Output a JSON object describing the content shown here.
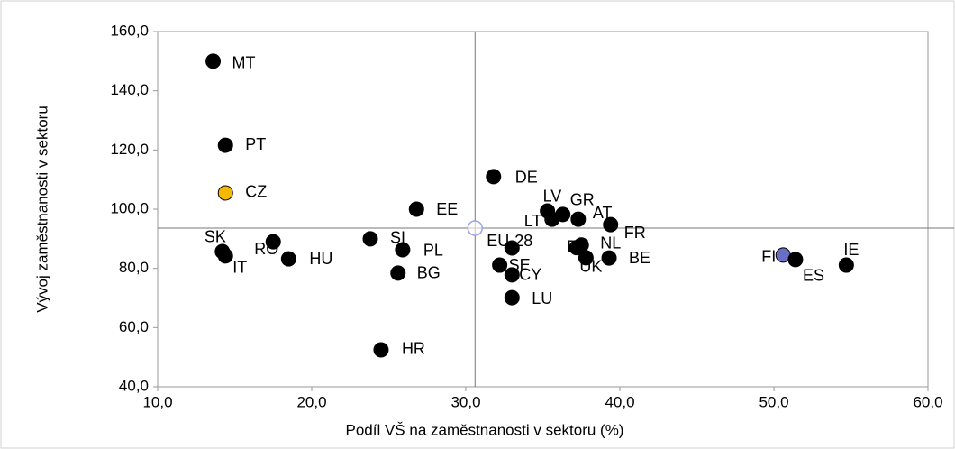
{
  "chart_data": {
    "type": "scatter",
    "x_label": "Podíl VŠ na zaměstnanosti  v sektoru (%)",
    "y_label": "Vývoj zaměstnanosti v sektoru",
    "labels": [
      "MT",
      "PT",
      "CZ",
      "SK",
      "IT",
      "RO",
      "HU",
      "SI",
      "PL",
      "BG",
      "HR",
      "EE",
      "DE",
      "LV",
      "LT",
      "GR",
      "AT",
      "FR",
      "EU-28",
      "DK",
      "NL",
      "UK",
      "BE",
      "SE",
      "CY",
      "LU",
      "FI",
      "ES",
      "IE"
    ],
    "x": [
      13.6,
      14.4,
      14.4,
      14.2,
      14.4,
      17.5,
      18.5,
      23.8,
      25.9,
      25.6,
      24.5,
      26.8,
      31.8,
      35.3,
      35.6,
      36.3,
      37.3,
      39.4,
      33.0,
      37.2,
      37.5,
      37.8,
      39.3,
      32.2,
      33.0,
      33.0,
      50.6,
      51.4,
      54.7
    ],
    "values": [
      150,
      121.6,
      105.5,
      85.7,
      84.2,
      89.0,
      83.2,
      90.0,
      86.3,
      78.4,
      52.5,
      100.0,
      111.0,
      99.4,
      96.6,
      98.2,
      96.6,
      94.8,
      86.9,
      87.0,
      87.9,
      83.6,
      83.5,
      81.1,
      77.8,
      70.1,
      84.5,
      83.0,
      81.1
    ],
    "colors": [
      "#000000",
      "#000000",
      "#f5b800",
      "#000000",
      "#000000",
      "#000000",
      "#000000",
      "#000000",
      "#000000",
      "#000000",
      "#000000",
      "#000000",
      "#000000",
      "#000000",
      "#000000",
      "#000000",
      "#000000",
      "#000000",
      "#000000",
      "#000000",
      "#000000",
      "#000000",
      "#000000",
      "#000000",
      "#000000",
      "#000000",
      "#6b6fc4",
      "#000000",
      "#000000"
    ],
    "reference": {
      "x": 30.6,
      "y": 93.6,
      "color": "#9da3e8"
    },
    "xlim": [
      10,
      60
    ],
    "ylim": [
      40,
      160
    ],
    "xticks": [
      {
        "value": 10,
        "label": "10,0"
      },
      {
        "value": 20,
        "label": "20,0"
      },
      {
        "value": 30,
        "label": "30,0"
      },
      {
        "value": 40,
        "label": "40,0"
      },
      {
        "value": 50,
        "label": "50,0"
      },
      {
        "value": 60,
        "label": "60,0"
      }
    ],
    "yticks": [
      {
        "value": 40,
        "label": "40,0"
      },
      {
        "value": 60,
        "label": "60,0"
      },
      {
        "value": 80,
        "label": "80,0"
      },
      {
        "value": 100,
        "label": "100,0"
      },
      {
        "value": 120,
        "label": "120,0"
      },
      {
        "value": 140,
        "label": "140,0"
      },
      {
        "value": 160,
        "label": "160,0"
      }
    ]
  }
}
